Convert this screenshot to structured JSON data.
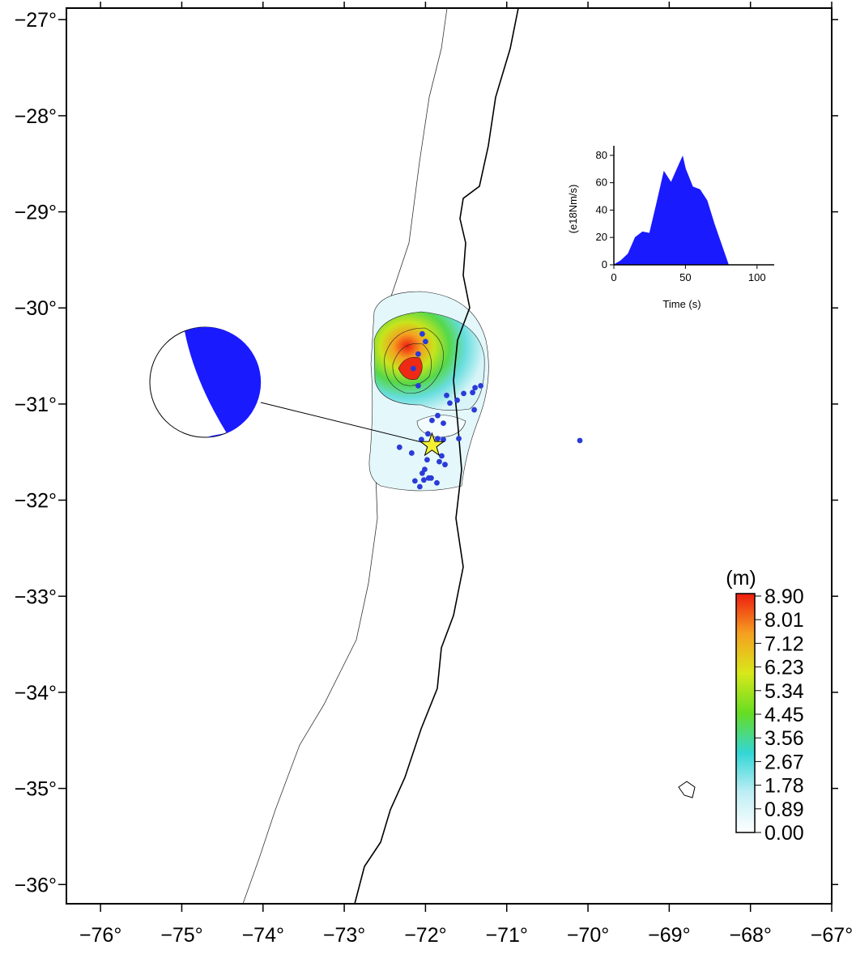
{
  "map": {
    "xlim": [
      -76.42,
      -67
    ],
    "ylim": [
      -36.2,
      -26.88
    ],
    "xticks": [
      {
        "value": -76,
        "label": "−76°"
      },
      {
        "value": -75,
        "label": "−75°"
      },
      {
        "value": -74,
        "label": "−74°"
      },
      {
        "value": -73,
        "label": "−73°"
      },
      {
        "value": -72,
        "label": "−72°"
      },
      {
        "value": -71,
        "label": "−71°"
      },
      {
        "value": -70,
        "label": "−70°"
      },
      {
        "value": -69,
        "label": "−69°"
      },
      {
        "value": -68,
        "label": "−68°"
      },
      {
        "value": -67,
        "label": "−67°"
      }
    ],
    "yticks": [
      {
        "value": -27,
        "label": "−27°"
      },
      {
        "value": -28,
        "label": "−28°"
      },
      {
        "value": -29,
        "label": "−29°"
      },
      {
        "value": -30,
        "label": "−30°"
      },
      {
        "value": -31,
        "label": "−31°"
      },
      {
        "value": -32,
        "label": "−32°"
      },
      {
        "value": -33,
        "label": "−33°"
      },
      {
        "value": -34,
        "label": "−34°"
      },
      {
        "value": -35,
        "label": "−35°"
      },
      {
        "value": -36,
        "label": "−36°"
      }
    ],
    "events": {
      "color": "#2a3bd8",
      "lon": [
        -72.04,
        -72.0,
        -72.09,
        -72.15,
        -72.09,
        -71.32,
        -71.39,
        -71.42,
        -71.53,
        -71.74,
        -71.61,
        -71.7,
        -71.4,
        -71.85,
        -71.78,
        -71.92,
        -71.85,
        -71.97,
        -71.91,
        -72.05,
        -71.78,
        -71.59,
        -72.32,
        -72.17,
        -71.8,
        -71.98,
        -71.83,
        -71.76,
        -72.01,
        -72.04,
        -71.93,
        -72.02,
        -71.96,
        -72.13,
        -72.07,
        -71.86,
        -70.1
      ],
      "lat": [
        -30.27,
        -30.35,
        -30.48,
        -30.63,
        -30.81,
        -30.81,
        -30.83,
        -30.88,
        -30.89,
        -30.91,
        -30.96,
        -30.99,
        -31.06,
        -31.12,
        -31.2,
        -31.17,
        -31.36,
        -31.31,
        -31.39,
        -31.37,
        -31.37,
        -31.36,
        -31.45,
        -31.51,
        -31.54,
        -31.58,
        -31.6,
        -31.63,
        -31.68,
        -31.72,
        -31.77,
        -31.79,
        -31.77,
        -31.8,
        -31.86,
        -31.82,
        -31.38
      ]
    },
    "epicenter": {
      "lon": -71.92,
      "lat": -31.43,
      "color": "#f5f032"
    }
  },
  "colorbar": {
    "title": "(m)",
    "lim": [
      0,
      8.9
    ],
    "colors": [
      "#ffffff",
      "#bfeef5",
      "#33d6d6",
      "#66dd22",
      "#d8e81a",
      "#f5a020",
      "#ee1c10"
    ],
    "ticks": [
      {
        "value": 8.9,
        "label": "8.90"
      },
      {
        "value": 8.01,
        "label": "8.01"
      },
      {
        "value": 7.12,
        "label": "7.12"
      },
      {
        "value": 6.23,
        "label": "6.23"
      },
      {
        "value": 5.34,
        "label": "5.34"
      },
      {
        "value": 4.45,
        "label": "4.45"
      },
      {
        "value": 3.56,
        "label": "3.56"
      },
      {
        "value": 2.67,
        "label": "2.67"
      },
      {
        "value": 1.78,
        "label": "1.78"
      },
      {
        "value": 0.89,
        "label": "0.89"
      },
      {
        "value": 0,
        "label": "0.00"
      }
    ]
  },
  "inset": {
    "type": "area",
    "xlabel": "Time (s)",
    "ylabel": "(e18Nm/s)",
    "color": "#1a1aff",
    "xlim": [
      0,
      112
    ],
    "ylim": [
      0,
      87
    ],
    "xticks": [
      0,
      50,
      100
    ],
    "yticks": [
      0,
      20,
      40,
      60,
      80
    ],
    "time": [
      0,
      5,
      10,
      15,
      20,
      25,
      30,
      35,
      40,
      45,
      48,
      50,
      55,
      60,
      65,
      70,
      75,
      80
    ],
    "values": [
      0,
      3,
      8,
      20,
      24,
      23,
      45,
      68,
      60,
      72,
      79,
      70,
      57,
      55,
      47,
      30,
      15,
      0
    ]
  }
}
